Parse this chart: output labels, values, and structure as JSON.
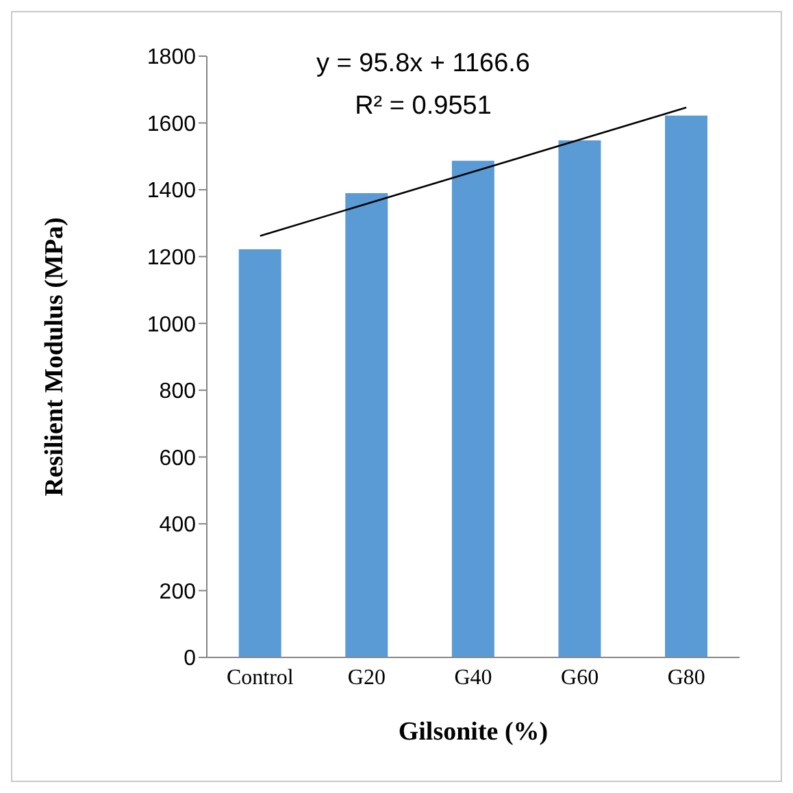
{
  "chart_data": {
    "type": "bar",
    "categories": [
      "Control",
      "G20",
      "G40",
      "G60",
      "G80"
    ],
    "series": [
      {
        "color": "#5b9bd5",
        "values": [
          1222,
          1390,
          1487,
          1548,
          1622
        ]
      },
      {
        "type": "line",
        "color": "#000000",
        "x": [
          "Control",
          "G80"
        ],
        "values": [
          1262,
          1646
        ]
      }
    ],
    "xlabel": "Gilsonite (%)",
    "ylabel": "Resilient Modulus (MPa)",
    "ylim": [
      0,
      1800
    ],
    "yticks": [
      0,
      200,
      400,
      600,
      800,
      1000,
      1200,
      1400,
      1600,
      1800
    ],
    "annotations": [
      "y = 95.8x + 1166.6",
      "R² = 0.9551"
    ],
    "grid": false,
    "marker": "none"
  }
}
